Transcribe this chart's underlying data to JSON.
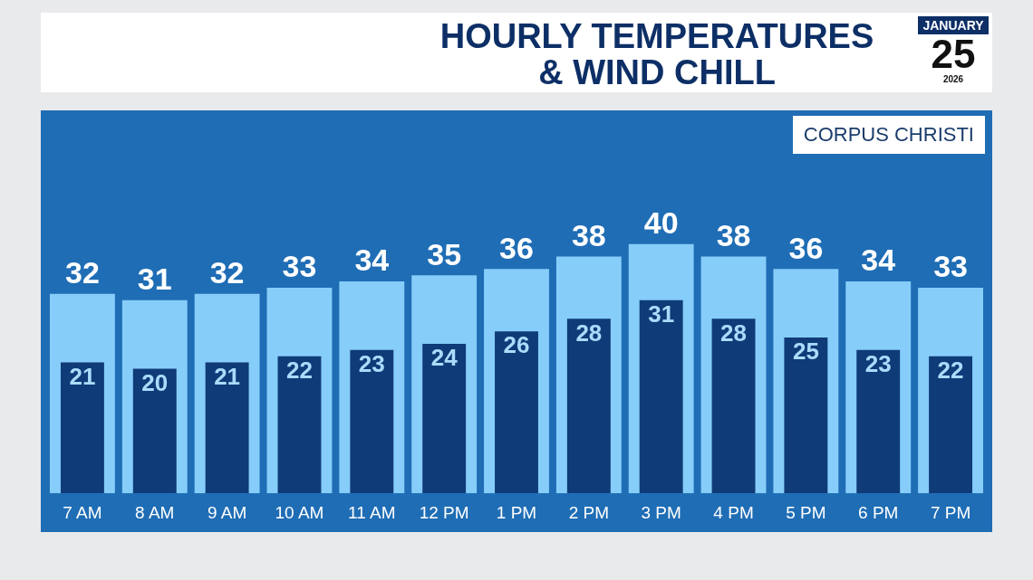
{
  "chart_data": {
    "type": "bar",
    "title": "HOURLY TEMPERATURES\n& WIND CHILL",
    "categories": [
      "7 AM",
      "8 AM",
      "9 AM",
      "10 AM",
      "11 AM",
      "12 PM",
      "1 PM",
      "2 PM",
      "3 PM",
      "4 PM",
      "5 PM",
      "6 PM",
      "7 PM"
    ],
    "series": [
      {
        "color": "#86cdf9",
        "values": [
          32,
          31,
          32,
          33,
          34,
          35,
          36,
          38,
          40,
          38,
          36,
          34,
          33
        ]
      },
      {
        "color": "#0f3b78",
        "values": [
          21,
          20,
          21,
          22,
          23,
          24,
          26,
          28,
          31,
          28,
          25,
          23,
          22
        ]
      }
    ],
    "annotations": [
      "CORPUS CHRISTI",
      "JANUARY",
      "25",
      "2026"
    ],
    "data_labels": true,
    "grid": false,
    "legend": false,
    "tick_labels": "x"
  }
}
